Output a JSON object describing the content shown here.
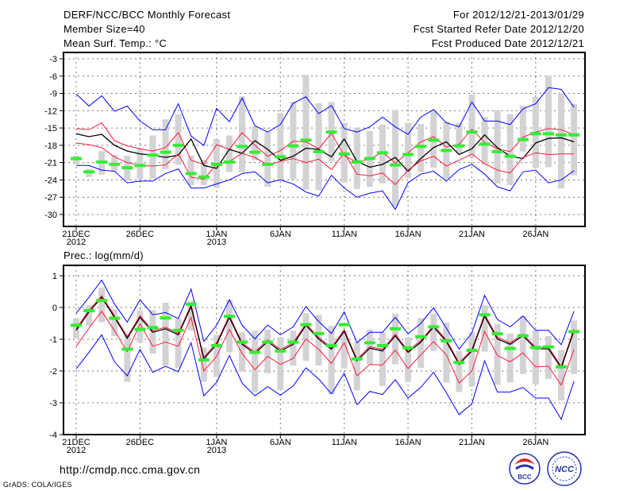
{
  "header": {
    "title": "DERF/NCC/BCC Monthly Forecast",
    "member_size": "Member Size=40",
    "variable": "Mean Surf. Temp.: °C",
    "period": "For 2012/12/21-2013/01/29",
    "started": "Fcst Started Refer Date 2012/12/20",
    "produced": "Fcst Produced Date 2012/12/21"
  },
  "footer": {
    "url": "http://cmdp.ncc.cma.gov.cn",
    "grads": "GrADS: COLA/IGES",
    "logo_bcc": "BCC",
    "logo_ncc": "NCC"
  },
  "colors": {
    "mean": "#000000",
    "spread": "#ff1a3c",
    "extreme": "#0000ff",
    "obs": "#33ee33",
    "range": "#d3d3d6"
  },
  "chart_data": [
    {
      "type": "line",
      "title": "Mean Surf. Temp.: °C",
      "ylabel": "°C",
      "ylim": [
        -30,
        -3
      ],
      "yticks": [
        "-3",
        "-6",
        "-9",
        "-12",
        "-15",
        "-18",
        "-21",
        "-24",
        "-27",
        "-30"
      ],
      "xticks": [
        {
          "day": 0,
          "label": "21DEC",
          "sub": "2012"
        },
        {
          "day": 5,
          "label": "26DEC"
        },
        {
          "day": 11,
          "label": "1JAN",
          "sub": "2013"
        },
        {
          "day": 16,
          "label": "6JAN"
        },
        {
          "day": 21,
          "label": "11JAN"
        },
        {
          "day": 26,
          "label": "16JAN"
        },
        {
          "day": 31,
          "label": "21JAN"
        },
        {
          "day": 36,
          "label": "26JAN"
        }
      ],
      "grid": true,
      "range_low": [
        -21.3,
        -23.5,
        -23.1,
        -22.6,
        -24.1,
        -23.9,
        -23.8,
        -22.1,
        -21.4,
        -24.9,
        -24.9,
        -25.4,
        -22.6,
        -22.7,
        -20.6,
        -25.2,
        -23.9,
        -23.9,
        -25.7,
        -25.8,
        -20.8,
        -24.5,
        -25.6,
        -25.2,
        -24.6,
        -28.6,
        -23.7,
        -22.6,
        -21.9,
        -23.8,
        -19.4,
        -20.1,
        -21.4,
        -24.6,
        -24.9,
        -19.1,
        -21.9,
        -21.8,
        -25.5,
        -23.2
      ],
      "range_high": [
        -19.8,
        -22.1,
        -19.0,
        -19.7,
        -19.8,
        -18.5,
        -16.3,
        -13.5,
        -12.6,
        -19.8,
        -20.5,
        -16.9,
        -16.3,
        -9.5,
        -14.7,
        -15.7,
        -12.4,
        -10.5,
        -5.8,
        -10.7,
        -10.5,
        -14.1,
        -14.9,
        -15.5,
        -14.4,
        -11.9,
        -14.1,
        -14.3,
        -11.9,
        -13.9,
        -14.1,
        -9.2,
        -13.1,
        -11.9,
        -12.6,
        -11.1,
        -9.6,
        -5.9,
        -9.0,
        -10.8
      ],
      "series": [
        {
          "name": "max",
          "color": "#0000ff",
          "values": [
            -9.1,
            -11.2,
            -9.4,
            -12.1,
            -11.2,
            -13.8,
            -15.3,
            -15.3,
            -10.8,
            -16.4,
            -18.0,
            -11.6,
            -13.9,
            -9.8,
            -14.6,
            -15.7,
            -14.4,
            -10.7,
            -9.6,
            -12.5,
            -11.1,
            -15.1,
            -15.7,
            -14.8,
            -13.1,
            -14.8,
            -16.1,
            -13.1,
            -11.8,
            -14.1,
            -14.8,
            -10.5,
            -13.8,
            -13.8,
            -14.4,
            -11.7,
            -10.8,
            -8.0,
            -8.3,
            -11.4
          ]
        },
        {
          "name": "upper",
          "color": "#ff1a3c",
          "values": [
            -15.1,
            -15.3,
            -14.1,
            -17.2,
            -18.1,
            -18.6,
            -19.0,
            -18.4,
            -15.8,
            -20.6,
            -21.3,
            -17.9,
            -18.7,
            -15.8,
            -18.0,
            -19.9,
            -18.9,
            -17.3,
            -17.4,
            -18.6,
            -15.9,
            -19.8,
            -20.9,
            -20.4,
            -19.2,
            -21.1,
            -19.3,
            -17.4,
            -16.5,
            -18.3,
            -17.8,
            -15.2,
            -17.5,
            -18.6,
            -19.1,
            -16.6,
            -15.7,
            -15.1,
            -15.3,
            -16.2
          ]
        },
        {
          "name": "mean",
          "color": "#000000",
          "values": [
            -16.0,
            -16.5,
            -16.1,
            -18.0,
            -19.0,
            -19.5,
            -19.7,
            -20.1,
            -19.7,
            -16.9,
            -21.5,
            -22.0,
            -18.7,
            -19.4,
            -17.2,
            -18.7,
            -20.6,
            -19.9,
            -18.5,
            -18.7,
            -20.0,
            -16.9,
            -20.8,
            -21.8,
            -21.3,
            -20.1,
            -22.5,
            -20.3,
            -18.4,
            -17.4,
            -19.6,
            -18.6,
            -16.2,
            -18.4,
            -19.9,
            -20.3,
            -17.6,
            -16.8,
            -16.7,
            -17.4
          ]
        },
        {
          "name": "lower",
          "color": "#ff1a3c",
          "values": [
            -17.6,
            -17.9,
            -18.4,
            -20.0,
            -21.0,
            -21.5,
            -21.6,
            -21.4,
            -19.5,
            -23.5,
            -23.9,
            -21.3,
            -20.8,
            -19.4,
            -20.1,
            -21.4,
            -20.8,
            -20.3,
            -21.0,
            -20.4,
            -22.2,
            -19.3,
            -23.0,
            -23.3,
            -22.8,
            -24.8,
            -22.3,
            -20.7,
            -19.9,
            -21.6,
            -20.6,
            -19.5,
            -21.2,
            -22.3,
            -22.8,
            -20.1,
            -19.3,
            -19.6,
            -19.5,
            -19.5
          ]
        },
        {
          "name": "min",
          "color": "#0000ff",
          "values": [
            -21.5,
            -21.5,
            -22.3,
            -22.5,
            -24.5,
            -24.2,
            -24.2,
            -22.9,
            -22.1,
            -25.4,
            -25.4,
            -24.7,
            -24.0,
            -22.9,
            -22.6,
            -24.5,
            -24.0,
            -24.7,
            -26.1,
            -26.8,
            -23.2,
            -25.4,
            -27.0,
            -26.3,
            -25.9,
            -29.1,
            -24.5,
            -23.0,
            -22.5,
            -24.2,
            -22.2,
            -21.3,
            -23.0,
            -25.2,
            -25.9,
            -22.6,
            -22.3,
            -24.5,
            -24.0,
            -22.4
          ]
        }
      ],
      "observed": [
        -20.3,
        -22.6,
        -20.9,
        -21.3,
        -21.9,
        -21.5,
        -19.7,
        -19.2,
        -18.0,
        -22.9,
        -23.5,
        -21.3,
        -20.9,
        -18.2,
        -19.2,
        -21.3,
        -20.0,
        -18.1,
        -17.1,
        -19.1,
        -15.7,
        -19.5,
        -20.9,
        -20.3,
        -19.3,
        -21.4,
        -19.6,
        -18.2,
        -17.1,
        -18.9,
        -18.1,
        -15.7,
        -17.8,
        -19.1,
        -19.9,
        -17.0,
        -16.0,
        -16.0,
        -16.2,
        -16.2
      ]
    },
    {
      "type": "line",
      "title": "Prec.: log(mm/d)",
      "ylabel": "log(mm/d)",
      "ylim": [
        -4,
        1
      ],
      "yticks": [
        "1",
        "0",
        "-1",
        "-2",
        "-3",
        "-4"
      ],
      "xticks": [
        {
          "day": 0,
          "label": "21DEC",
          "sub": "2012"
        },
        {
          "day": 5,
          "label": "26DEC"
        },
        {
          "day": 11,
          "label": "1JAN",
          "sub": "2013"
        },
        {
          "day": 16,
          "label": "6JAN"
        },
        {
          "day": 21,
          "label": "11JAN"
        },
        {
          "day": 26,
          "label": "16JAN"
        },
        {
          "day": 31,
          "label": "21JAN"
        },
        {
          "day": 36,
          "label": "26JAN"
        }
      ],
      "grid": true,
      "range_low": [
        -0.97,
        -0.59,
        -0.46,
        -0.9,
        -2.34,
        -1.11,
        -1.45,
        -1.83,
        -1.9,
        -0.72,
        -2.34,
        -2.19,
        -1.41,
        -2.02,
        -2.66,
        -2.07,
        -2.59,
        -1.83,
        -1.68,
        -1.83,
        -2.72,
        -1.92,
        -2.61,
        -1.79,
        -2.47,
        -1.79,
        -2.34,
        -1.9,
        -1.37,
        -2.36,
        -2.66,
        -2.49,
        -1.39,
        -2.43,
        -2.36,
        -2.09,
        -2.41,
        -2.25,
        -2.93,
        -2.09
      ],
      "range_high": [
        -0.34,
        0.07,
        0.62,
        -0.06,
        -0.86,
        -0.1,
        -0.08,
        0.15,
        -0.35,
        0.2,
        -1.26,
        -0.86,
        0.24,
        -0.78,
        -0.73,
        -0.69,
        -0.94,
        -0.73,
        -0.18,
        -0.23,
        -0.58,
        -0.72,
        -1.09,
        -0.69,
        -0.78,
        -0.2,
        -0.94,
        -0.33,
        -0.2,
        -0.48,
        -1.37,
        -0.78,
        0.07,
        -0.52,
        -0.82,
        -0.27,
        -0.72,
        -0.9,
        -1.34,
        -0.41
      ],
      "series": [
        {
          "name": "max",
          "color": "#0000ff",
          "values": [
            -0.18,
            0.32,
            0.86,
            0.11,
            -0.46,
            0.24,
            -0.23,
            -0.16,
            -0.35,
            0.58,
            -1.07,
            -0.56,
            0.24,
            -0.56,
            -0.99,
            -0.55,
            -0.86,
            -0.61,
            0.03,
            -0.44,
            -0.82,
            -0.14,
            -1.11,
            -0.78,
            -0.78,
            -0.31,
            -0.83,
            -0.5,
            -0.01,
            -0.65,
            -1.31,
            -0.8,
            0.38,
            -0.38,
            -0.61,
            -0.27,
            -0.72,
            -0.72,
            -1.17,
            -0.12
          ]
        },
        {
          "name": "upper",
          "color": "#ff1a3c",
          "values": [
            -0.67,
            -0.09,
            0.37,
            -0.26,
            -0.92,
            -0.26,
            -0.73,
            -0.62,
            -0.81,
            0.08,
            -1.57,
            -1.11,
            -0.26,
            -1.11,
            -1.4,
            -1.02,
            -1.32,
            -1.11,
            -0.51,
            -0.94,
            -1.26,
            -0.7,
            -1.63,
            -1.23,
            -1.32,
            -0.84,
            -1.36,
            -1.04,
            -0.56,
            -1.02,
            -1.74,
            -1.32,
            -0.22,
            -0.94,
            -1.11,
            -0.84,
            -1.25,
            -1.25,
            -1.85,
            -0.68
          ]
        },
        {
          "name": "mean",
          "color": "#000000",
          "values": [
            -0.72,
            -0.14,
            0.32,
            -0.31,
            -0.97,
            -0.31,
            -0.78,
            -0.67,
            -0.86,
            0.03,
            -1.62,
            -1.16,
            -0.31,
            -1.16,
            -1.45,
            -1.07,
            -1.37,
            -1.16,
            -0.56,
            -0.99,
            -1.31,
            -0.75,
            -1.68,
            -1.28,
            -1.37,
            -0.89,
            -1.41,
            -1.09,
            -0.61,
            -1.07,
            -1.79,
            -1.37,
            -0.27,
            -0.99,
            -1.16,
            -0.89,
            -1.3,
            -1.3,
            -1.9,
            -0.73
          ]
        },
        {
          "name": "lower",
          "color": "#ff1a3c",
          "values": [
            -1.22,
            -0.65,
            -0.12,
            -0.73,
            -1.39,
            -0.52,
            -1.22,
            -1.09,
            -1.22,
            -0.31,
            -2.0,
            -1.54,
            -0.69,
            -1.45,
            -1.96,
            -1.54,
            -1.79,
            -1.6,
            -0.99,
            -1.32,
            -1.76,
            -1.11,
            -2.15,
            -1.79,
            -1.81,
            -1.34,
            -1.92,
            -1.49,
            -1.07,
            -1.49,
            -2.38,
            -2.0,
            -0.75,
            -1.51,
            -1.71,
            -1.43,
            -1.87,
            -1.85,
            -2.44,
            -1.32
          ]
        },
        {
          "name": "min",
          "color": "#0000ff",
          "values": [
            -1.93,
            -1.41,
            -0.86,
            -1.71,
            -2.15,
            -1.32,
            -2.04,
            -1.85,
            -2.02,
            -1.11,
            -2.78,
            -2.36,
            -1.51,
            -2.38,
            -2.78,
            -2.49,
            -2.76,
            -2.47,
            -1.9,
            -2.25,
            -2.72,
            -2.07,
            -3.06,
            -2.64,
            -2.74,
            -2.27,
            -2.85,
            -2.51,
            -2.04,
            -2.68,
            -3.37,
            -3.03,
            -1.68,
            -2.66,
            -2.66,
            -2.52,
            -2.85,
            -2.85,
            -3.52,
            -2.32
          ]
        }
      ],
      "observed": [
        -0.56,
        -0.1,
        0.22,
        -0.34,
        -1.31,
        -0.69,
        -0.63,
        -0.33,
        -0.72,
        0.1,
        -1.65,
        -1.2,
        -0.28,
        -1.09,
        -1.41,
        -1.09,
        -1.37,
        -1.09,
        -0.54,
        -0.82,
        -1.2,
        -0.54,
        -1.62,
        -1.11,
        -1.2,
        -0.67,
        -1.27,
        -0.92,
        -0.61,
        -1.05,
        -1.73,
        -1.35,
        -0.23,
        -0.83,
        -1.29,
        -0.89,
        -1.26,
        -1.24,
        -1.87,
        -0.76
      ]
    }
  ]
}
